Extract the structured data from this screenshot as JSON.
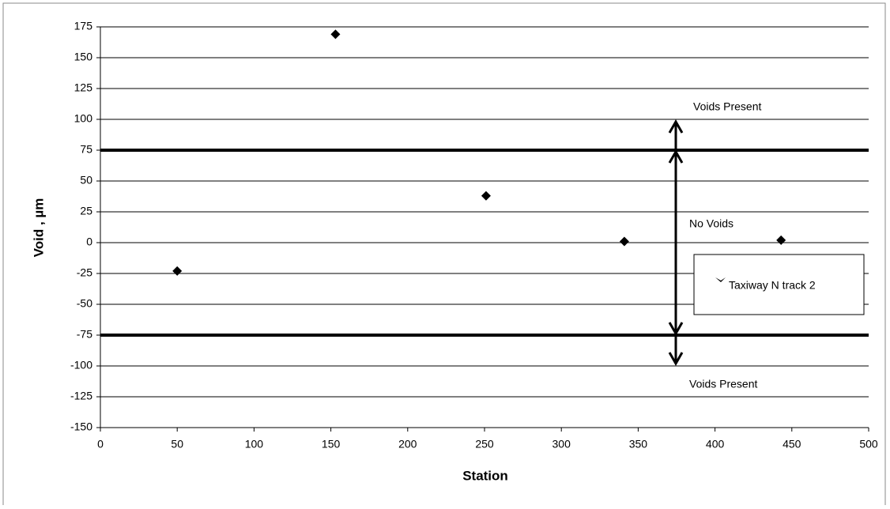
{
  "chart_data": {
    "type": "scatter",
    "x_label": "Station",
    "y_label": "Void , µm",
    "series": [
      {
        "name": "Taxiway N track 2",
        "color": "#000000",
        "x": [
          50,
          153,
          251,
          341,
          443
        ],
        "values": [
          -23,
          169,
          38,
          1,
          2
        ]
      }
    ],
    "xlim": [
      0,
      500
    ],
    "xticks": [
      0,
      50,
      100,
      150,
      200,
      250,
      300,
      350,
      400,
      450,
      500
    ],
    "ylim": [
      -150,
      175
    ],
    "yticks": [
      -150,
      -125,
      -100,
      -75,
      -50,
      -25,
      0,
      25,
      50,
      75,
      100,
      125,
      150,
      175
    ],
    "grid": true,
    "reference_lines": [
      75,
      -75
    ],
    "annotations": [
      "Voids Present",
      "No Voids",
      "Voids Present"
    ],
    "legend": "right"
  }
}
